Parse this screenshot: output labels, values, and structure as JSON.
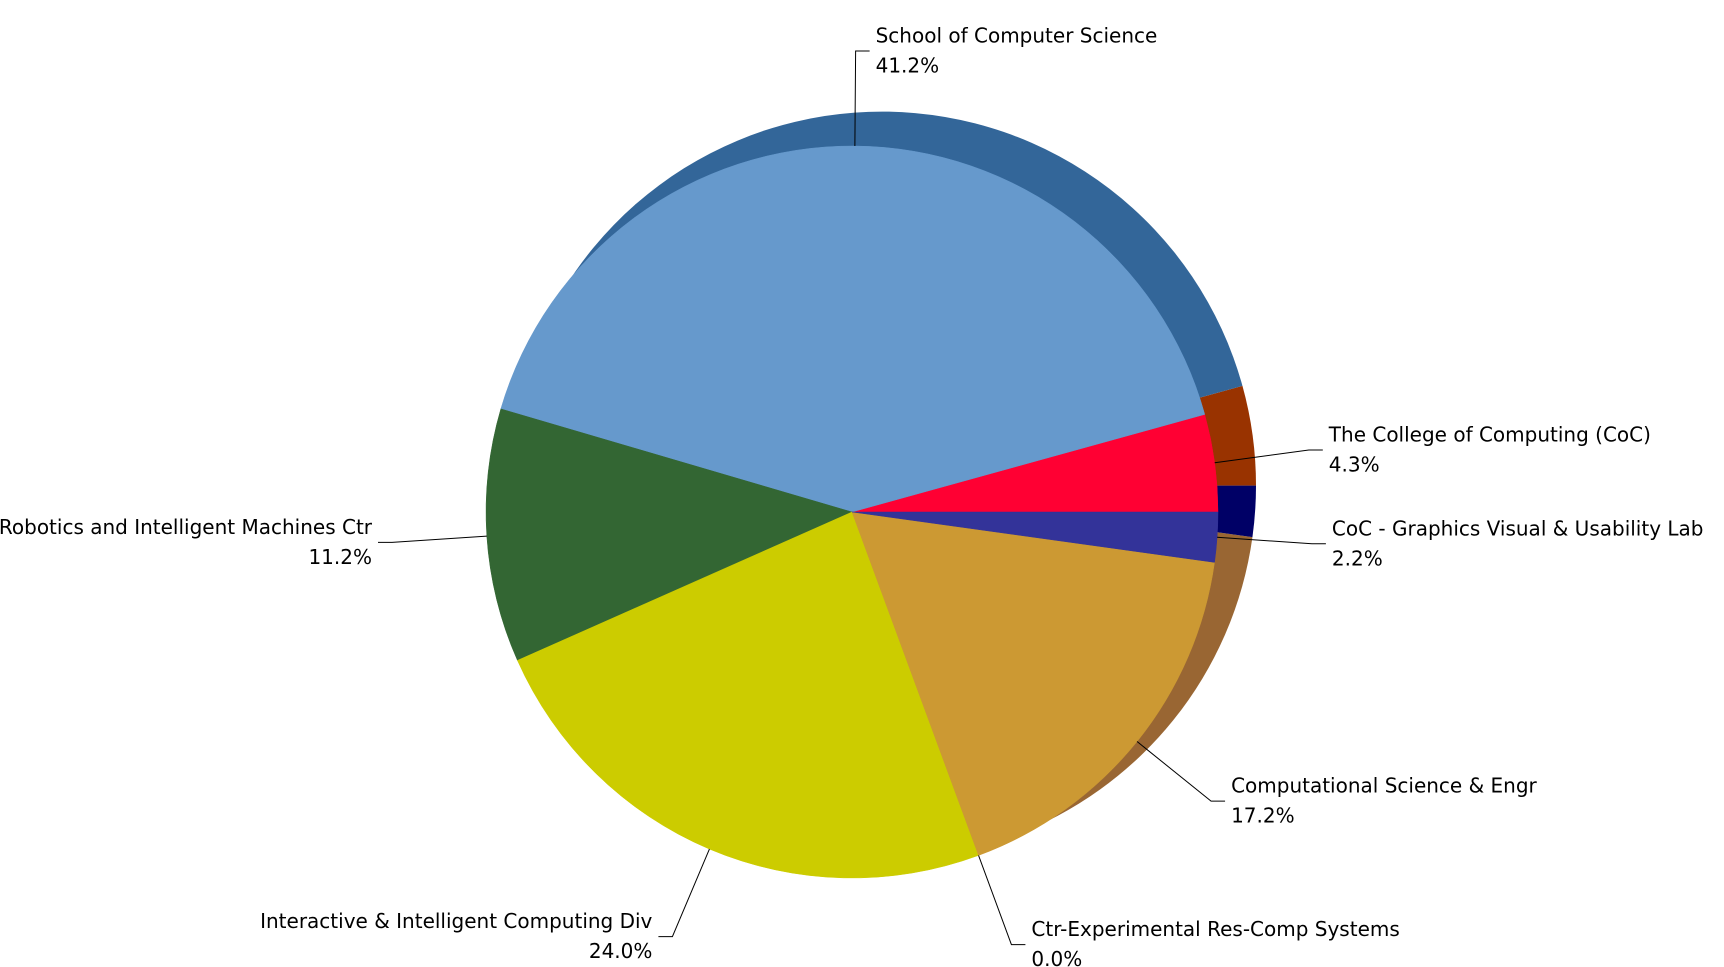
{
  "chart_data": {
    "type": "pie",
    "slices": [
      {
        "name": "The College of Computing (CoC)",
        "value": 4.3,
        "value_label": "4.3%",
        "color": "#ff0033",
        "depth_color": "#993300"
      },
      {
        "name": "School of Computer Science",
        "value": 41.2,
        "value_label": "41.2%",
        "color": "#6699cc",
        "depth_color": "#336699"
      },
      {
        "name": "Robotics and Intelligent Machines Ctr",
        "value": 11.2,
        "value_label": "11.2%",
        "color": "#336633",
        "depth_color": "#1f401f"
      },
      {
        "name": "Interactive & Intelligent Computing Div",
        "value": 24.0,
        "value_label": "24.0%",
        "color": "#cccc00",
        "depth_color": "#888800"
      },
      {
        "name": "Ctr-Experimental Res-Comp Systems",
        "value": 0.0,
        "value_label": "0.0%",
        "color": "#999999",
        "depth_color": "#666666"
      },
      {
        "name": "Computational Science & Engr",
        "value": 17.2,
        "value_label": "17.2%",
        "color": "#cc9933",
        "depth_color": "#996633"
      },
      {
        "name": "CoC - Graphics Visual & Usability Lab",
        "value": 2.2,
        "value_label": "2.2%",
        "color": "#333399",
        "depth_color": "#000066"
      }
    ]
  }
}
